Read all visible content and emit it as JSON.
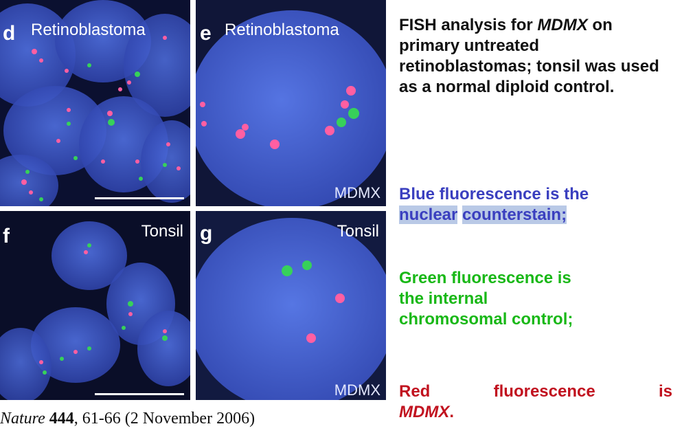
{
  "panels": [
    {
      "letter": "d",
      "title": "Retinoblastoma",
      "marker": ""
    },
    {
      "letter": "e",
      "title": "Retinoblastoma",
      "marker": "MDMX"
    },
    {
      "letter": "f",
      "title": "Tonsil",
      "marker": ""
    },
    {
      "letter": "g",
      "title": "Tonsil",
      "marker": "MDMX"
    }
  ],
  "citation": {
    "journal": "Nature",
    "volume": "444",
    "details": ", 61-66 (2 November 2006)"
  },
  "description": {
    "fish_prefix": "FISH analysis for ",
    "fish_gene": "MDMX",
    "fish_rest": "on primary untreated retinoblastomas; tonsil was used as a normal diploid control.",
    "blue_line1": "Blue fluorescence is the",
    "blue_word1": "nuclear",
    "blue_word2": "counterstain",
    "blue_end": ";",
    "green_line1": "Green fluorescence is",
    "green_line2": "the internal",
    "green_line3": "chromosomal control;",
    "red_w1": "Red",
    "red_w2": "fluorescence",
    "red_w3": "is",
    "red_gene": "MDMX",
    "red_end": "."
  },
  "colors": {
    "nucleus_blue": "#3b55c8",
    "background_dark": "#0c1030",
    "green_signal": "#37d15a",
    "red_signal": "#ff5fa2",
    "text_blue": "#3a3fbf",
    "text_green": "#19b817",
    "text_red": "#c1121f"
  }
}
